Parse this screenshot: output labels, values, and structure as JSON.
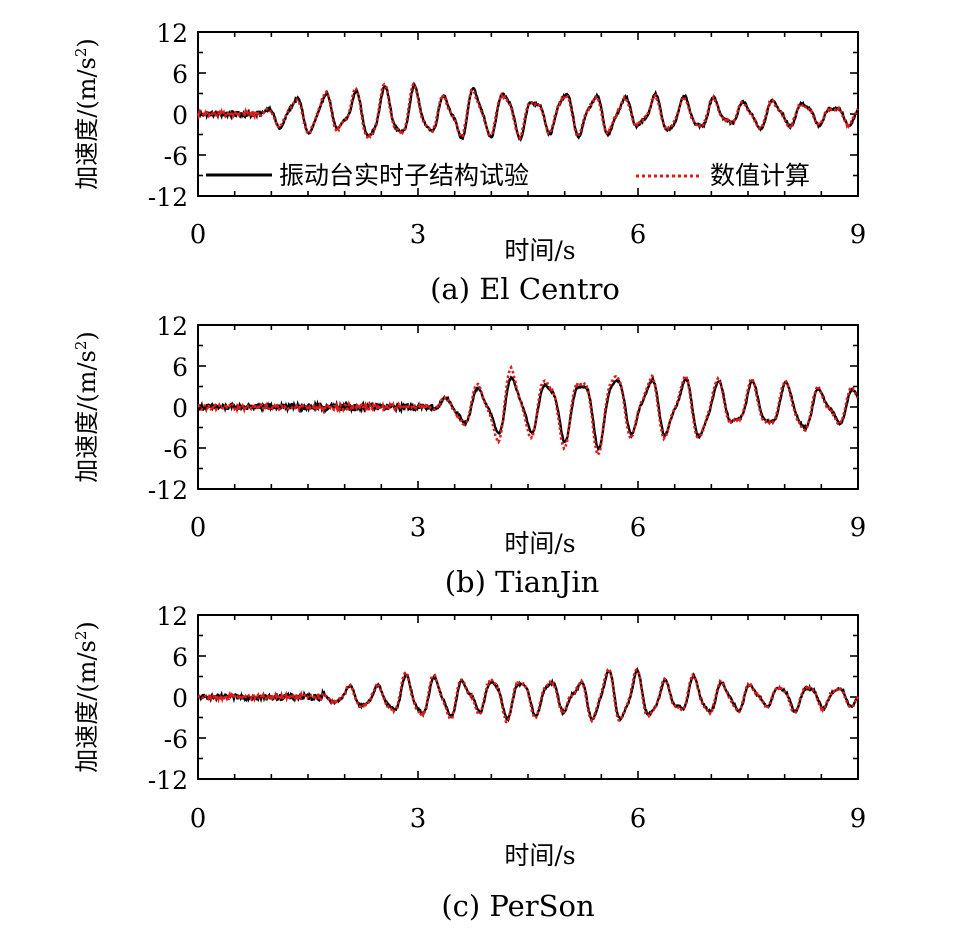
{
  "colors": {
    "experiment": "#000000",
    "numerical": "#e01b1b",
    "axis": "#000000"
  },
  "legend": {
    "series_a": "振动台实时子结构试验",
    "series_b": "数值计算"
  },
  "chart_data": [
    {
      "type": "line",
      "caption": "(a) El Centro",
      "xlabel": "时间/s",
      "ylabel_main": "加速度/(m/s",
      "ylabel_sup": "2",
      "ylabel_end": ")",
      "xlim": [
        0,
        9
      ],
      "ylim": [
        -12,
        12
      ],
      "xticks": [
        "0",
        "3",
        "6",
        "9"
      ],
      "yticks": [
        "12",
        "6",
        "0",
        "-6",
        "-12"
      ],
      "onset": 0.9,
      "series": [
        {
          "name": "振动台实时子结构试验",
          "style": "solid",
          "envelope": {
            "t": [
              0,
              0.9,
              1.2,
              2.2,
              3.6,
              5.0,
              6.5,
              7.2,
              8.2,
              9.0
            ],
            "amp": [
              0.4,
              0.6,
              2.6,
              4.0,
              3.9,
              3.4,
              2.8,
              2.4,
              2.0,
              1.7
            ]
          },
          "frequency_hz": 2.45
        },
        {
          "name": "数值计算",
          "style": "dotted",
          "envelope": {
            "t": [
              0,
              0.9,
              1.2,
              2.2,
              3.6,
              5.0,
              6.5,
              7.2,
              8.2,
              9.0
            ],
            "amp": [
              0.3,
              0.5,
              2.3,
              4.6,
              3.6,
              3.2,
              2.6,
              2.3,
              1.9,
              1.6
            ]
          },
          "frequency_hz": 2.45
        }
      ]
    },
    {
      "type": "line",
      "caption": "(b) TianJin",
      "xlabel": "时间/s",
      "ylabel_main": "加速度/(m/s",
      "ylabel_sup": "2",
      "ylabel_end": ")",
      "xlim": [
        0,
        9
      ],
      "ylim": [
        -12,
        12
      ],
      "xticks": [
        "0",
        "3",
        "6",
        "9"
      ],
      "yticks": [
        "12",
        "6",
        "0",
        "-6",
        "-12"
      ],
      "onset": 3.2,
      "series": [
        {
          "name": "振动台实时子结构试验",
          "style": "solid",
          "envelope": {
            "t": [
              0,
              3.2,
              3.6,
              4.2,
              5.0,
              6.0,
              7.0,
              8.0,
              9.0
            ],
            "amp": [
              0.5,
              0.6,
              3.0,
              4.2,
              5.5,
              5.2,
              4.3,
              3.6,
              3.0
            ]
          },
          "frequency_hz": 2.15
        },
        {
          "name": "数值计算",
          "style": "dotted",
          "envelope": {
            "t": [
              0,
              3.2,
              3.6,
              4.2,
              5.0,
              6.0,
              7.0,
              8.0,
              9.0
            ],
            "amp": [
              0.4,
              0.5,
              3.3,
              5.5,
              6.5,
              5.8,
              4.6,
              3.8,
              3.2
            ]
          },
          "frequency_hz": 2.15
        }
      ]
    },
    {
      "type": "line",
      "caption": "(c) PerSon",
      "xlabel": "时间/s",
      "ylabel_main": "加速度/(m/s",
      "ylabel_sup": "2",
      "ylabel_end": ")",
      "xlim": [
        0,
        9
      ],
      "ylim": [
        -12,
        12
      ],
      "xticks": [
        "0",
        "3",
        "6",
        "9"
      ],
      "yticks": [
        "12",
        "6",
        "0",
        "-6",
        "-12"
      ],
      "onset": 1.7,
      "series": [
        {
          "name": "振动台实时子结构试验",
          "style": "solid",
          "envelope": {
            "t": [
              0,
              1.7,
              2.2,
              3.0,
              4.0,
              5.0,
              5.8,
              6.5,
              7.5,
              8.5,
              9.0
            ],
            "amp": [
              0.4,
              0.6,
              1.9,
              3.2,
              3.0,
              2.8,
              4.2,
              3.0,
              2.2,
              1.8,
              1.6
            ]
          },
          "frequency_hz": 2.55
        },
        {
          "name": "数值计算",
          "style": "dotted",
          "envelope": {
            "t": [
              0,
              1.7,
              2.2,
              3.0,
              4.0,
              5.0,
              5.8,
              6.5,
              7.5,
              8.5,
              9.0
            ],
            "amp": [
              0.3,
              0.5,
              2.0,
              3.6,
              3.4,
              2.9,
              4.5,
              3.2,
              2.3,
              1.9,
              1.7
            ]
          },
          "frequency_hz": 2.55
        }
      ]
    }
  ]
}
